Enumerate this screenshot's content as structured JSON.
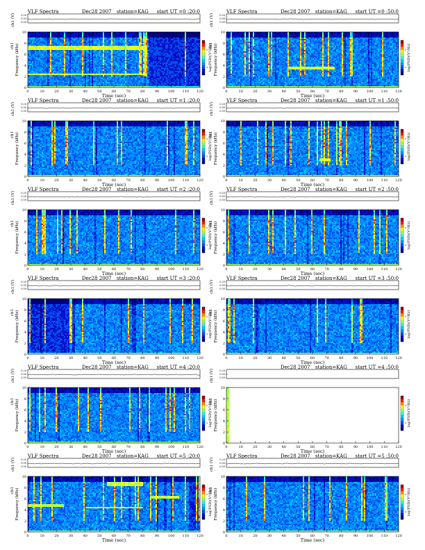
{
  "page": {
    "colors": {
      "background": "#ffffff",
      "colormap": [
        "#00007a",
        "#0010c8",
        "#0050f0",
        "#0090ff",
        "#00ccff",
        "#30ffd0",
        "#a0ff60",
        "#ffff00",
        "#ff9000",
        "#ff1a00",
        "#a00000"
      ],
      "missing_data": "#ffffff"
    }
  },
  "chart_data": [
    {
      "type": "heatmap",
      "header": {
        "left": "VLF Spectra",
        "date": "Dec28 2007",
        "station": "station=KAG",
        "start": "start UT =0 :20:0"
      },
      "ylabel": "Frequency (kHz)",
      "ylabel_top": "ch1",
      "ch_label": "ch1 (V)",
      "ch_ticks": [
        "0.20",
        "0.00",
        "0.50"
      ],
      "xlabel": "Time (sec)",
      "xlim": [
        0,
        120
      ],
      "ylim": [
        0,
        10
      ],
      "xticks": [
        "0",
        "10",
        "20",
        "30",
        "40",
        "50",
        "60",
        "70",
        "80",
        "90",
        "100",
        "110",
        "120"
      ],
      "yticks": [
        "0",
        "2",
        "4",
        "6",
        "8",
        "10"
      ],
      "colorbar_label": "log(PSD)(V²/Hz)",
      "colorbar_ticks": [
        "4",
        "6"
      ],
      "data_coverage": [
        0,
        120
      ],
      "features": [
        {
          "type": "band",
          "t0": 0,
          "t1": 83,
          "f0": 2.3,
          "f1": 2.7
        },
        {
          "type": "band",
          "t0": 0,
          "t1": 83,
          "f0": 6.8,
          "f1": 7.6
        },
        {
          "type": "dark",
          "t0": 84,
          "t1": 120
        }
      ]
    },
    {
      "type": "heatmap",
      "header": {
        "left": "VLF Spectra",
        "date": "Dec28 2007",
        "station": "station=KAG",
        "start": "start UT =0 :50:0"
      },
      "ylabel": "Frequency (kHz)",
      "ylabel_top": "ch1",
      "ch_label": "ch1 (V)",
      "ch_ticks": [
        "0.20",
        "0.00",
        "0.50"
      ],
      "xlabel": "Time (sec)",
      "xlim": [
        0,
        120
      ],
      "ylim": [
        0,
        10
      ],
      "xticks": [
        "0",
        "10",
        "20",
        "30",
        "40",
        "50",
        "60",
        "70",
        "80",
        "90",
        "100",
        "110",
        "120"
      ],
      "yticks": [
        "0",
        "2",
        "4",
        "6",
        "8",
        "10"
      ],
      "colorbar_label": "log(PSD)(V²/Hz)",
      "colorbar_ticks": [
        "4",
        "6"
      ],
      "data_coverage": [
        0,
        120
      ],
      "features": [
        {
          "type": "band",
          "t0": 42,
          "t1": 75,
          "f0": 3.4,
          "f1": 3.8
        }
      ]
    },
    {
      "type": "heatmap",
      "header": {
        "left": "VLF Spectra",
        "date": "Dec28 2007",
        "station": "station=KAG",
        "start": "start UT =1 :20:0"
      },
      "ylabel": "Frequency (kHz)",
      "ylabel_top": "ch1",
      "ch_label": "ch1 (V)",
      "ch_ticks": [
        "0.20",
        "0.00",
        "0.50"
      ],
      "xlabel": "Time (sec)",
      "xlim": [
        0,
        120
      ],
      "ylim": [
        0,
        10
      ],
      "xticks": [
        "0",
        "10",
        "20",
        "30",
        "40",
        "50",
        "60",
        "70",
        "80",
        "90",
        "100",
        "110",
        "120"
      ],
      "yticks": [
        "0",
        "2",
        "4",
        "6",
        "8",
        "10"
      ],
      "colorbar_label": "log(PSD)(V²/Hz)",
      "colorbar_ticks": [
        "4",
        "6"
      ],
      "data_coverage": [
        0,
        120
      ],
      "features": []
    },
    {
      "type": "heatmap",
      "header": {
        "left": "VLF Spectra",
        "date": "Dec28 2007",
        "station": "station=KAG",
        "start": "start UT =1 :50:0"
      },
      "ylabel": "Frequency (kHz)",
      "ylabel_top": "ch1",
      "ch_label": "ch1 (V)",
      "ch_ticks": [
        "0.20",
        "0.00",
        "0.50"
      ],
      "xlabel": "Time (sec)",
      "xlim": [
        0,
        120
      ],
      "ylim": [
        0,
        10
      ],
      "xticks": [
        "0",
        "10",
        "20",
        "30",
        "40",
        "50",
        "60",
        "70",
        "80",
        "90",
        "100",
        "110",
        "120"
      ],
      "yticks": [
        "0",
        "2",
        "4",
        "6",
        "8",
        "10"
      ],
      "colorbar_label": "log(PSD)(V²/Hz)",
      "colorbar_ticks": [
        "4",
        "6"
      ],
      "data_coverage": [
        0,
        120
      ],
      "features": [
        {
          "type": "band",
          "t0": 64,
          "t1": 72,
          "f0": 3.0,
          "f1": 3.4
        }
      ]
    },
    {
      "type": "heatmap",
      "header": {
        "left": "VLF Spectra",
        "date": "Dec28 2007",
        "station": "station=KAG",
        "start": "start UT =2 :20:0"
      },
      "ylabel": "Frequency (kHz)",
      "ylabel_top": "ch1",
      "ch_label": "ch1 (V)",
      "ch_ticks": [
        "0.20",
        "0.00",
        "0.50"
      ],
      "xlabel": "Time (sec)",
      "xlim": [
        0,
        120
      ],
      "ylim": [
        0,
        10
      ],
      "xticks": [
        "0",
        "10",
        "20",
        "30",
        "40",
        "50",
        "60",
        "70",
        "80",
        "90",
        "100",
        "110",
        "120"
      ],
      "yticks": [
        "0",
        "2",
        "4",
        "6",
        "8",
        "10"
      ],
      "colorbar_label": "log(PSD)(V²/Hz)",
      "colorbar_ticks": [
        "4",
        "6"
      ],
      "data_coverage": [
        0,
        120
      ],
      "features": []
    },
    {
      "type": "heatmap",
      "header": {
        "left": "VLF Spectra",
        "date": "Dec28 2007",
        "station": "station=KAG",
        "start": "start UT =2 :50:0"
      },
      "ylabel": "Frequency (kHz)",
      "ylabel_top": "ch1",
      "ch_label": "ch1 (V)",
      "ch_ticks": [
        "0.20",
        "0.00",
        "0.50"
      ],
      "xlabel": "Time (sec)",
      "xlim": [
        0,
        120
      ],
      "ylim": [
        0,
        10
      ],
      "xticks": [
        "0",
        "10",
        "20",
        "30",
        "40",
        "50",
        "60",
        "70",
        "80",
        "90",
        "100",
        "110",
        "120"
      ],
      "yticks": [
        "0",
        "2",
        "4",
        "6",
        "8",
        "10"
      ],
      "colorbar_label": "log(PSD)(V²/Hz)",
      "colorbar_ticks": [
        "4",
        "6"
      ],
      "data_coverage": [
        0,
        120
      ],
      "features": []
    },
    {
      "type": "heatmap",
      "header": {
        "left": "VLF Spectra",
        "date": "Dec28 2007",
        "station": "station=KAG",
        "start": "start UT =3 :20:0"
      },
      "ylabel": "Frequency (kHz)",
      "ylabel_top": "ch1",
      "ch_label": "ch1 (V)",
      "ch_ticks": [
        "0.20",
        "0.00",
        "0.50"
      ],
      "xlabel": "Time (sec)",
      "xlim": [
        0,
        120
      ],
      "ylim": [
        0,
        10
      ],
      "xticks": [
        "0",
        "10",
        "20",
        "30",
        "40",
        "50",
        "60",
        "70",
        "80",
        "90",
        "100",
        "110",
        "120"
      ],
      "yticks": [
        "0",
        "2",
        "4",
        "6",
        "8",
        "10"
      ],
      "colorbar_label": "log(PSD)(V²/Hz)",
      "colorbar_ticks": [
        "4",
        "6"
      ],
      "data_coverage": [
        0,
        120
      ],
      "features": [
        {
          "type": "dark",
          "t0": 0,
          "t1": 32
        }
      ]
    },
    {
      "type": "heatmap",
      "header": {
        "left": "VLF Spectra",
        "date": "Dec28 2007",
        "station": "station=KAG",
        "start": "start UT =3 :50:0"
      },
      "ylabel": "Frequency (kHz)",
      "ylabel_top": "ch1",
      "ch_label": "ch1 (V)",
      "ch_ticks": [
        "0.20",
        "0.00",
        "0.50"
      ],
      "xlabel": "Time (sec)",
      "xlim": [
        0,
        120
      ],
      "ylim": [
        0,
        10
      ],
      "xticks": [
        "0",
        "10",
        "20",
        "30",
        "40",
        "50",
        "60",
        "70",
        "80",
        "90",
        "100",
        "110",
        "120"
      ],
      "yticks": [
        "0",
        "2",
        "4",
        "6",
        "8",
        "10"
      ],
      "colorbar_label": "log(PSD)(V²/Hz)",
      "colorbar_ticks": [
        "4",
        "6"
      ],
      "data_coverage": [
        0,
        120
      ],
      "features": []
    },
    {
      "type": "heatmap",
      "header": {
        "left": "VLF Spectra",
        "date": "Dec28 2007",
        "station": "station=KAG",
        "start": "start UT =4 :20:0"
      },
      "ylabel": "Frequency (kHz)",
      "ylabel_top": "ch1",
      "ch_label": "ch1 (V)",
      "ch_ticks": [
        "0.20",
        "0.00",
        "0.50"
      ],
      "xlabel": "Time (sec)",
      "xlim": [
        0,
        120
      ],
      "ylim": [
        0,
        10
      ],
      "xticks": [
        "0",
        "10",
        "20",
        "30",
        "40",
        "50",
        "60",
        "70",
        "80",
        "90",
        "100",
        "110",
        "120"
      ],
      "yticks": [
        "0",
        "2",
        "4",
        "6",
        "8",
        "10"
      ],
      "colorbar_label": "log(PSD)(V²/Hz)",
      "colorbar_ticks": [
        "4",
        "6"
      ],
      "data_coverage": [
        0,
        120
      ],
      "features": []
    },
    {
      "type": "heatmap",
      "header": {
        "left": "",
        "date": "Dec28 2007",
        "station": "station=KAG",
        "start": "start UT =4 :50:0"
      },
      "ylabel": "Frequency (kHz)",
      "ylabel_top": "ch1",
      "ch_label": "ch1 (V)",
      "ch_ticks": [
        "0.20",
        "0.00",
        "0.50"
      ],
      "xlabel": "Time (sec)",
      "xlim": [
        0,
        120
      ],
      "ylim": [
        0,
        10
      ],
      "xticks": [
        "0",
        "10",
        "20",
        "30",
        "40",
        "50",
        "60",
        "70",
        "80",
        "90",
        "100",
        "110",
        "120"
      ],
      "yticks": [
        "0",
        "2",
        "4",
        "6",
        "8",
        "10"
      ],
      "colorbar_label": "log(PSD)(V²/Hz)",
      "colorbar_ticks": [
        "4",
        "6"
      ],
      "data_coverage": [
        0,
        1.5
      ],
      "features": []
    },
    {
      "type": "heatmap",
      "header": {
        "left": "VLF Spectra",
        "date": "Dec28 2007",
        "station": "station=KAG",
        "start": "start UT =5 :20:0"
      },
      "ylabel": "Frequency (kHz)",
      "ylabel_top": "ch1",
      "ch_label": "ch1 (V)",
      "ch_ticks": [
        "0.20",
        "0.00",
        "0.50"
      ],
      "xlabel": "Time (sec)",
      "xlim": [
        0,
        120
      ],
      "ylim": [
        0,
        10
      ],
      "xticks": [
        "0",
        "10",
        "20",
        "30",
        "40",
        "50",
        "60",
        "70",
        "80",
        "90",
        "100",
        "110",
        "120"
      ],
      "yticks": [
        "0",
        "2",
        "4",
        "6",
        "8",
        "10"
      ],
      "colorbar_label": "log(PSD)(V²/Hz)",
      "colorbar_ticks": [
        "4",
        "6"
      ],
      "data_coverage": [
        0,
        120
      ],
      "features": [
        {
          "type": "band",
          "t0": 0,
          "t1": 25,
          "f0": 4.7,
          "f1": 5.1
        },
        {
          "type": "band",
          "t0": 40,
          "t1": 80,
          "f0": 4.3,
          "f1": 4.7
        },
        {
          "type": "band",
          "t0": 55,
          "t1": 80,
          "f0": 8.5,
          "f1": 9.2
        },
        {
          "type": "band",
          "t0": 85,
          "t1": 105,
          "f0": 6.2,
          "f1": 6.7
        },
        {
          "type": "dark",
          "t0": 112,
          "t1": 120
        }
      ]
    },
    {
      "type": "heatmap",
      "header": {
        "left": "VLF Spectra",
        "date": "Dec28 2007",
        "station": "station=KAG",
        "start": "start UT =5 :50:0"
      },
      "ylabel": "Frequency (kHz)",
      "ylabel_top": "ch1",
      "ch_label": "ch1 (V)",
      "ch_ticks": [
        "0.20",
        "0.00",
        "0.50"
      ],
      "xlabel": "Time (sec)",
      "xlim": [
        0,
        120
      ],
      "ylim": [
        0,
        10
      ],
      "xticks": [
        "0",
        "10",
        "20",
        "30",
        "40",
        "50",
        "60",
        "70",
        "80",
        "90",
        "100",
        "110",
        "120"
      ],
      "yticks": [
        "0",
        "2",
        "4",
        "6",
        "8",
        "10"
      ],
      "colorbar_label": "log(PSD)(V²/Hz)",
      "colorbar_ticks": [
        "4",
        "6"
      ],
      "data_coverage": [
        0,
        120
      ],
      "features": []
    }
  ]
}
